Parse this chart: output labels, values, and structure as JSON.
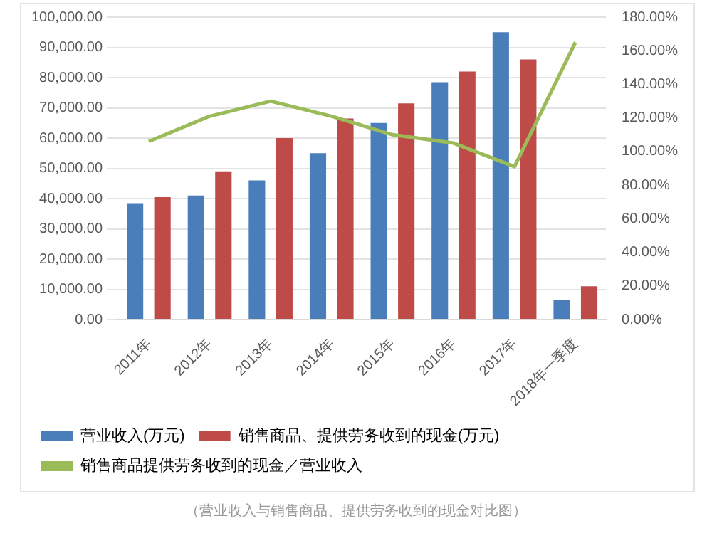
{
  "chart_data": {
    "type": "bar",
    "categories": [
      "2011年",
      "2012年",
      "2013年",
      "2014年",
      "2015年",
      "2016年",
      "2017年",
      "2018年一季度"
    ],
    "series": [
      {
        "name": "营业收入(万元)",
        "color": "#4a7ebb",
        "values": [
          38500,
          41000,
          46000,
          55000,
          65000,
          78500,
          95000,
          6500
        ]
      },
      {
        "name": "销售商品、提供劳务收到的现金(万元)",
        "color": "#be4b48",
        "values": [
          40500,
          49000,
          60000,
          66500,
          71500,
          82000,
          86000,
          11000
        ]
      },
      {
        "name": "销售商品提供劳务收到的现金／营业收入",
        "type": "line",
        "axis": "y2",
        "color": "#9bbb59",
        "values": [
          106,
          121,
          130,
          121,
          110,
          105,
          91,
          165
        ]
      }
    ],
    "ylim": [
      0,
      100000
    ],
    "yticks": [
      {
        "value": 0,
        "label": "0.00"
      },
      {
        "value": 10000,
        "label": "10,000.00"
      },
      {
        "value": 20000,
        "label": "20,000.00"
      },
      {
        "value": 30000,
        "label": "30,000.00"
      },
      {
        "value": 40000,
        "label": "40,000.00"
      },
      {
        "value": 50000,
        "label": "50,000.00"
      },
      {
        "value": 60000,
        "label": "60,000.00"
      },
      {
        "value": 70000,
        "label": "70,000.00"
      },
      {
        "value": 80000,
        "label": "80,000.00"
      },
      {
        "value": 90000,
        "label": "90,000.00"
      },
      {
        "value": 100000,
        "label": "100,000.00"
      }
    ],
    "y2lim": [
      0,
      180
    ],
    "y2ticks": [
      {
        "value": 0,
        "label": "0.00%"
      },
      {
        "value": 20,
        "label": "20.00%"
      },
      {
        "value": 40,
        "label": "40.00%"
      },
      {
        "value": 60,
        "label": "60.00%"
      },
      {
        "value": 80,
        "label": "80.00%"
      },
      {
        "value": 100,
        "label": "100.00%"
      },
      {
        "value": 120,
        "label": "120.00%"
      },
      {
        "value": 140,
        "label": "140.00%"
      },
      {
        "value": 160,
        "label": "160.00%"
      },
      {
        "value": 180,
        "label": "180.00%"
      }
    ],
    "grid": "y",
    "legend": "bottom",
    "marker": "none",
    "annotations": [
      "（营业收入与销售商品、提供劳务收到的现金对比图）"
    ]
  }
}
